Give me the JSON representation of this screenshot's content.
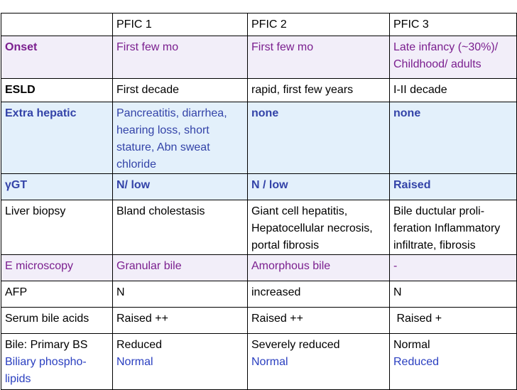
{
  "table": {
    "header": [
      "PFIC 1",
      "PFIC 2",
      "PFIC 3"
    ],
    "rows": [
      [
        "Onset",
        "First few mo",
        "First few mo",
        "Late infancy (~30%)/ Childhood/ adults"
      ],
      [
        "ESLD",
        "First decade",
        "rapid, first few years",
        "I-II decade"
      ],
      [
        "Extra hepatic",
        "Pancreatitis, diarrhea, hearing loss, short stature, Abn sweat chloride",
        "none",
        "none"
      ],
      [
        "γGT",
        "N/ low",
        "N / low",
        "Raised"
      ],
      [
        "Liver biopsy",
        "Bland cholestasis",
        "Giant cell hepatitis, Hepatocellular necrosis, portal fibrosis",
        "Bile ductular proli-feration Inflammatory infiltrate, fibrosis"
      ],
      [
        "E microscopy",
        "Granular bile",
        "Amorphous bile",
        "-"
      ],
      [
        "AFP",
        "N",
        "increased",
        "N"
      ],
      [
        "Serum bile acids",
        "Raised ++",
        "Raised ++",
        " Raised +"
      ],
      [
        [
          "Bile: Primary BS",
          "Biliary phospho-lipids"
        ],
        [
          "Reduced",
          "Normal"
        ],
        [
          "Severely reduced",
          "Normal"
        ],
        [
          "Normal",
          "Reduced"
        ]
      ]
    ]
  }
}
